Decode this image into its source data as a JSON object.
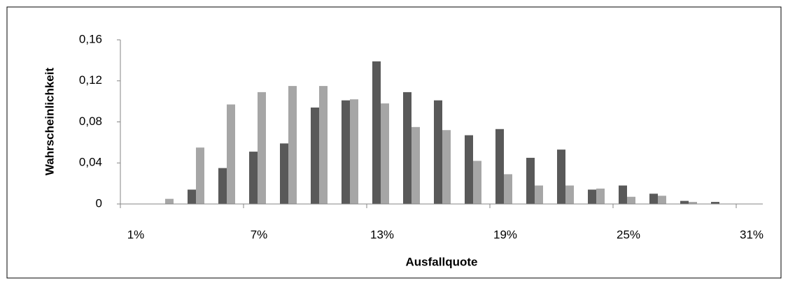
{
  "chart_data": {
    "type": "bar",
    "y_label": "Wahrscheinlichkeit",
    "x_label": "Ausfallquote",
    "categories": [
      "1%",
      null,
      null,
      null,
      "7%",
      null,
      null,
      null,
      "13%",
      null,
      null,
      null,
      "19%",
      null,
      null,
      null,
      "25%",
      null,
      null,
      null,
      "31%"
    ],
    "series": [
      {
        "color": "#595959",
        "values": [
          0,
          0,
          0.014,
          0.035,
          0.051,
          0.059,
          0.094,
          0.101,
          0.139,
          0.109,
          0.101,
          0.067,
          0.073,
          0.045,
          0.053,
          0.014,
          0.018,
          0.01,
          0.003,
          0.002,
          0
        ]
      },
      {
        "color": "#a6a6a6",
        "values": [
          0,
          0.005,
          0.055,
          0.097,
          0.109,
          0.115,
          0.115,
          0.102,
          0.098,
          0.075,
          0.072,
          0.042,
          0.029,
          0.018,
          0.018,
          0.015,
          0.007,
          0.008,
          0.002,
          0,
          0
        ]
      }
    ],
    "ylim": [
      0,
      0.16
    ],
    "yticks": [
      0,
      {
        "value": 0.04,
        "label": "0,04"
      },
      {
        "value": 0.08,
        "label": "0,08"
      },
      {
        "value": 0.12,
        "label": "0,12"
      },
      {
        "value": 0.16,
        "label": "0,16"
      }
    ],
    "grid": false
  }
}
